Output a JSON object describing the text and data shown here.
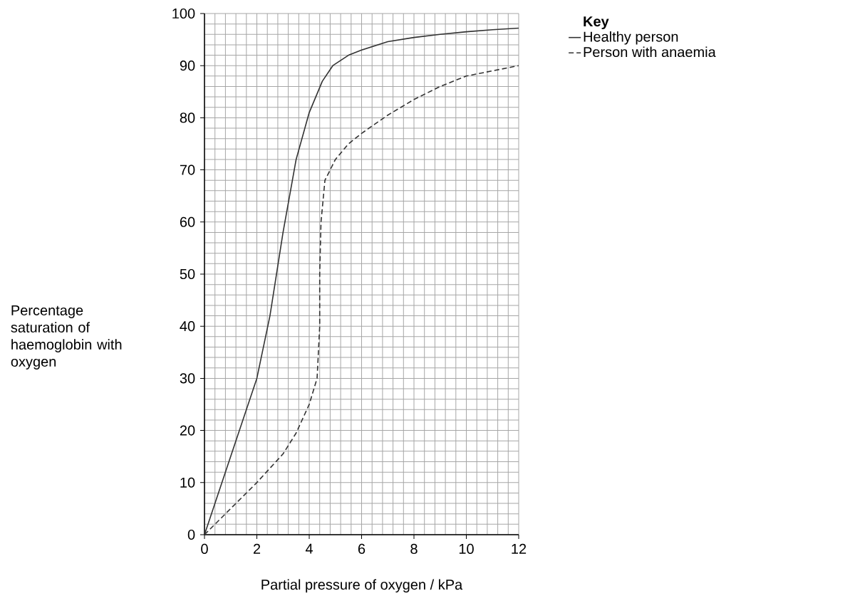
{
  "chart_data": {
    "type": "line",
    "xlabel": "Partial pressure of oxygen / kPa",
    "ylabel": "Percentage saturation of haemoglobin with oxygen",
    "legend_title": "Key",
    "legend": "top right",
    "grid": true,
    "xlim": [
      0,
      12
    ],
    "ylim": [
      0,
      100
    ],
    "xticks": [
      0,
      2,
      4,
      6,
      8,
      10,
      12
    ],
    "yticks": [
      0,
      10,
      20,
      30,
      40,
      50,
      60,
      70,
      80,
      90,
      100
    ],
    "series": [
      {
        "name": "Healthy person",
        "color": "#333333",
        "line_style": "solid",
        "x": [
          0,
          0.5,
          1,
          1.5,
          2,
          2.5,
          3,
          3.5,
          4,
          4.5,
          4.9,
          5.5,
          6,
          7,
          8,
          9,
          10,
          11,
          12
        ],
        "values": [
          0,
          7.5,
          15,
          22.5,
          30,
          42,
          58,
          72,
          81,
          87,
          90,
          92,
          93,
          94.6,
          95.4,
          96,
          96.5,
          96.9,
          97.2
        ]
      },
      {
        "name": "Person with anaemia",
        "color": "#333333",
        "line_style": "dashed",
        "x": [
          0,
          1,
          2,
          3,
          3.5,
          4,
          4.3,
          4.4,
          4.4,
          4.45,
          4.6,
          5,
          5.5,
          6,
          7,
          8,
          9,
          10,
          11,
          12
        ],
        "values": [
          0,
          5,
          10,
          15.5,
          19.5,
          25,
          30,
          40,
          50,
          60,
          68,
          72,
          75,
          77,
          80.5,
          83.5,
          86,
          88,
          89,
          90
        ]
      }
    ]
  }
}
